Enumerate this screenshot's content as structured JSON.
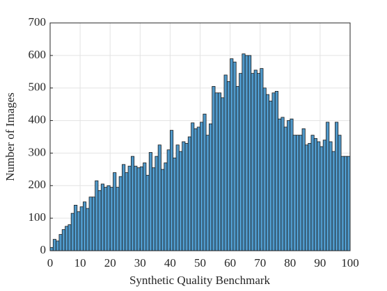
{
  "chart_data": {
    "type": "histogram",
    "xlabel": "Synthetic Quality Benchmark",
    "ylabel": "Number of Images",
    "color": "#4f98c9",
    "edgecolor": "#1a1a1a",
    "grid": true,
    "xlim": [
      0,
      100
    ],
    "ylim": [
      0,
      700
    ],
    "xticks": [
      0,
      10,
      20,
      30,
      40,
      50,
      60,
      70,
      80,
      90,
      100
    ],
    "yticks": [
      0,
      100,
      200,
      300,
      400,
      500,
      600,
      700
    ],
    "bins": [
      0,
      1,
      2,
      3,
      4,
      5,
      6,
      7,
      8,
      9,
      10,
      11,
      12,
      13,
      14,
      15,
      16,
      17,
      18,
      19,
      20,
      21,
      22,
      23,
      24,
      25,
      26,
      27,
      28,
      29,
      30,
      31,
      32,
      33,
      34,
      35,
      36,
      37,
      38,
      39,
      40,
      41,
      42,
      43,
      44,
      45,
      46,
      47,
      48,
      49,
      50,
      51,
      52,
      53,
      54,
      55,
      56,
      57,
      58,
      59,
      60,
      61,
      62,
      63,
      64,
      65,
      66,
      67,
      68,
      69,
      70,
      71,
      72,
      73,
      74,
      75,
      76,
      77,
      78,
      79,
      80,
      81,
      82,
      83,
      84,
      85,
      86,
      87,
      88,
      89,
      90,
      91,
      92,
      93,
      94,
      95,
      96,
      97,
      98,
      99,
      100
    ],
    "values": [
      10,
      35,
      30,
      50,
      65,
      75,
      80,
      115,
      140,
      120,
      135,
      150,
      130,
      165,
      165,
      215,
      185,
      205,
      195,
      200,
      195,
      240,
      195,
      228,
      265,
      240,
      260,
      290,
      260,
      255,
      258,
      270,
      232,
      302,
      255,
      290,
      325,
      250,
      270,
      310,
      370,
      285,
      325,
      305,
      335,
      330,
      350,
      393,
      375,
      380,
      395,
      420,
      355,
      390,
      505,
      485,
      485,
      470,
      540,
      520,
      590,
      580,
      505,
      545,
      605,
      600,
      600,
      545,
      555,
      545,
      560,
      500,
      480,
      460,
      485,
      490,
      405,
      410,
      380,
      400,
      405,
      355,
      355,
      355,
      375,
      325,
      330,
      355,
      345,
      335,
      320,
      340,
      395,
      335,
      305,
      395,
      355,
      290,
      290,
      290
    ]
  }
}
